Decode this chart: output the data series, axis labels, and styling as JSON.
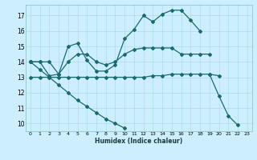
{
  "title": "",
  "xlabel": "Humidex (Indice chaleur)",
  "bg_color": "#cceeff",
  "line_color": "#1a6b6b",
  "grid_color": "#aadddd",
  "xlim": [
    -0.5,
    23.5
  ],
  "ylim": [
    9.5,
    17.7
  ],
  "yticks": [
    10,
    11,
    12,
    13,
    14,
    15,
    16,
    17
  ],
  "xticks": [
    0,
    1,
    2,
    3,
    4,
    5,
    6,
    7,
    8,
    9,
    10,
    11,
    12,
    13,
    14,
    15,
    16,
    17,
    18,
    19,
    20,
    21,
    22,
    23
  ],
  "curve1_y": [
    14.0,
    14.0,
    13.1,
    13.2,
    15.0,
    15.2,
    14.1,
    13.4,
    13.4,
    13.8,
    15.5,
    16.1,
    17.0,
    16.6,
    17.1,
    17.35,
    17.35,
    16.7,
    16.0,
    null,
    null,
    null,
    null,
    null
  ],
  "curve2_y": [
    14.0,
    14.0,
    14.0,
    13.2,
    14.0,
    14.5,
    14.5,
    14.0,
    13.8,
    14.0,
    14.5,
    14.8,
    14.9,
    14.9,
    14.9,
    14.9,
    14.5,
    14.5,
    14.5,
    14.5,
    null,
    null,
    null,
    null
  ],
  "curve3_y": [
    13.0,
    13.0,
    13.0,
    13.0,
    13.0,
    13.0,
    13.0,
    13.0,
    13.0,
    13.0,
    13.0,
    13.0,
    13.0,
    13.1,
    13.1,
    13.2,
    13.2,
    13.2,
    13.2,
    13.2,
    13.1,
    null,
    null,
    null
  ],
  "curve4_y": [
    14.0,
    null,
    null,
    null,
    null,
    null,
    null,
    null,
    null,
    null,
    null,
    null,
    null,
    null,
    null,
    null,
    null,
    null,
    null,
    13.2,
    11.8,
    10.5,
    9.9,
    null
  ],
  "curve5_y": [
    14.0,
    13.5,
    13.0,
    12.5,
    12.0,
    11.5,
    11.1,
    10.7,
    10.3,
    10.0,
    9.7,
    null,
    null,
    null,
    null,
    null,
    null,
    null,
    null,
    null,
    null,
    null,
    null,
    null
  ]
}
